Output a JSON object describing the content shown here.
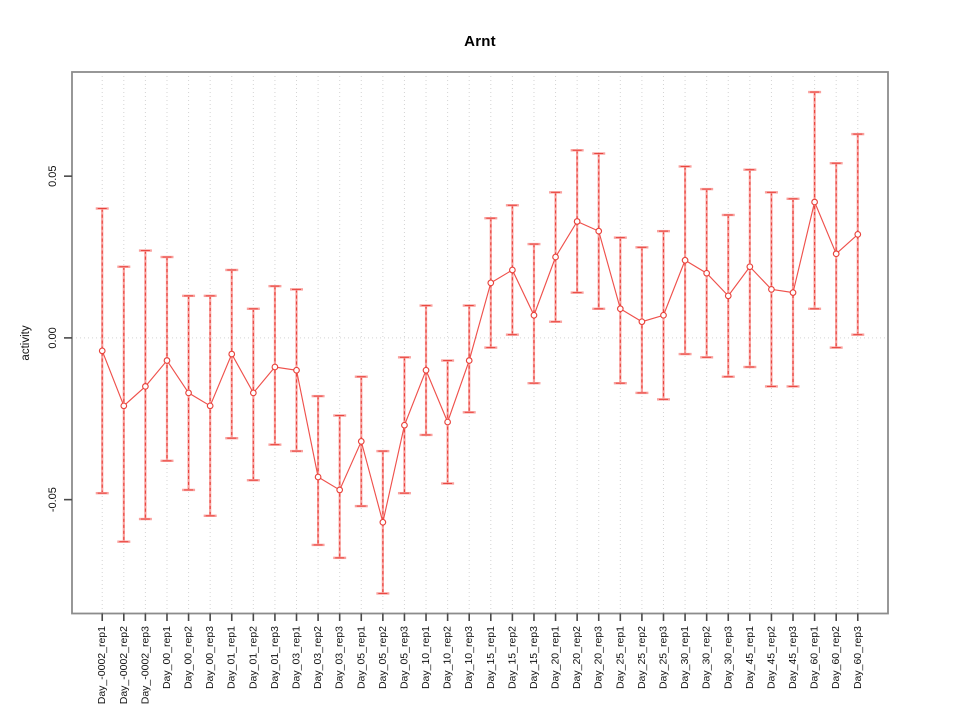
{
  "chart_data": {
    "type": "scatter",
    "title": "Arnt",
    "xlabel": "",
    "ylabel": "activity",
    "legend": "none",
    "grid": "vertical dotted gridline at every category; horizontal dotted line at y=0 only",
    "ylim": [
      -0.0852,
      0.0822
    ],
    "yticks": [
      -0.05,
      0,
      0.05
    ],
    "ytick_labels": [
      "-0.05",
      "0.00",
      "0.05"
    ],
    "marker": "open-circle",
    "error_bars": "vertical with caps, red dashed core over pale solid",
    "categories": [
      "Day_-0002_rep1",
      "Day_-0002_rep2",
      "Day_-0002_rep3",
      "Day_00_rep1",
      "Day_00_rep2",
      "Day_00_rep3",
      "Day_01_rep1",
      "Day_01_rep2",
      "Day_01_rep3",
      "Day_03_rep1",
      "Day_03_rep2",
      "Day_03_rep3",
      "Day_05_rep1",
      "Day_05_rep2",
      "Day_05_rep3",
      "Day_10_rep1",
      "Day_10_rep2",
      "Day_10_rep3",
      "Day_15_rep1",
      "Day_15_rep2",
      "Day_15_rep3",
      "Day_20_rep1",
      "Day_20_rep2",
      "Day_20_rep3",
      "Day_25_rep1",
      "Day_25_rep2",
      "Day_25_rep3",
      "Day_30_rep1",
      "Day_30_rep2",
      "Day_30_rep3",
      "Day_45_rep1",
      "Day_45_rep2",
      "Day_45_rep3",
      "Day_60_rep1",
      "Day_60_rep2",
      "Day_60_rep3"
    ],
    "points": [
      {
        "label": "Day_-0002_rep1",
        "value": -0.004,
        "lo": -0.048,
        "hi": 0.04
      },
      {
        "label": "Day_-0002_rep2",
        "value": -0.021,
        "lo": -0.063,
        "hi": 0.022
      },
      {
        "label": "Day_-0002_rep3",
        "value": -0.015,
        "lo": -0.056,
        "hi": 0.027
      },
      {
        "label": "Day_00_rep1",
        "value": -0.007,
        "lo": -0.038,
        "hi": 0.025
      },
      {
        "label": "Day_00_rep2",
        "value": -0.017,
        "lo": -0.047,
        "hi": 0.013
      },
      {
        "label": "Day_00_rep3",
        "value": -0.021,
        "lo": -0.055,
        "hi": 0.013
      },
      {
        "label": "Day_01_rep1",
        "value": -0.005,
        "lo": -0.031,
        "hi": 0.021
      },
      {
        "label": "Day_01_rep2",
        "value": -0.017,
        "lo": -0.044,
        "hi": 0.009
      },
      {
        "label": "Day_01_rep3",
        "value": -0.009,
        "lo": -0.033,
        "hi": 0.016
      },
      {
        "label": "Day_03_rep1",
        "value": -0.01,
        "lo": -0.035,
        "hi": 0.015
      },
      {
        "label": "Day_03_rep2",
        "value": -0.043,
        "lo": -0.064,
        "hi": -0.018
      },
      {
        "label": "Day_03_rep3",
        "value": -0.047,
        "lo": -0.068,
        "hi": -0.024
      },
      {
        "label": "Day_05_rep1",
        "value": -0.032,
        "lo": -0.052,
        "hi": -0.012
      },
      {
        "label": "Day_05_rep2",
        "value": -0.057,
        "lo": -0.079,
        "hi": -0.035
      },
      {
        "label": "Day_05_rep3",
        "value": -0.027,
        "lo": -0.048,
        "hi": -0.006
      },
      {
        "label": "Day_10_rep1",
        "value": -0.01,
        "lo": -0.03,
        "hi": 0.01
      },
      {
        "label": "Day_10_rep2",
        "value": -0.026,
        "lo": -0.045,
        "hi": -0.007
      },
      {
        "label": "Day_10_rep3",
        "value": -0.007,
        "lo": -0.023,
        "hi": 0.01
      },
      {
        "label": "Day_15_rep1",
        "value": 0.017,
        "lo": -0.003,
        "hi": 0.037
      },
      {
        "label": "Day_15_rep2",
        "value": 0.021,
        "lo": 0.001,
        "hi": 0.041
      },
      {
        "label": "Day_15_rep3",
        "value": 0.007,
        "lo": -0.014,
        "hi": 0.029
      },
      {
        "label": "Day_20_rep1",
        "value": 0.025,
        "lo": 0.005,
        "hi": 0.045
      },
      {
        "label": "Day_20_rep2",
        "value": 0.036,
        "lo": 0.014,
        "hi": 0.058
      },
      {
        "label": "Day_20_rep3",
        "value": 0.033,
        "lo": 0.009,
        "hi": 0.057
      },
      {
        "label": "Day_25_rep1",
        "value": 0.009,
        "lo": -0.014,
        "hi": 0.031
      },
      {
        "label": "Day_25_rep2",
        "value": 0.005,
        "lo": -0.017,
        "hi": 0.028
      },
      {
        "label": "Day_25_rep3",
        "value": 0.007,
        "lo": -0.019,
        "hi": 0.033
      },
      {
        "label": "Day_30_rep1",
        "value": 0.024,
        "lo": -0.005,
        "hi": 0.053
      },
      {
        "label": "Day_30_rep2",
        "value": 0.02,
        "lo": -0.006,
        "hi": 0.046
      },
      {
        "label": "Day_30_rep3",
        "value": 0.013,
        "lo": -0.012,
        "hi": 0.038
      },
      {
        "label": "Day_45_rep1",
        "value": 0.022,
        "lo": -0.009,
        "hi": 0.052
      },
      {
        "label": "Day_45_rep2",
        "value": 0.015,
        "lo": -0.015,
        "hi": 0.045
      },
      {
        "label": "Day_45_rep3",
        "value": 0.014,
        "lo": -0.015,
        "hi": 0.043
      },
      {
        "label": "Day_60_rep1",
        "value": 0.042,
        "lo": 0.009,
        "hi": 0.076
      },
      {
        "label": "Day_60_rep2",
        "value": 0.026,
        "lo": -0.003,
        "hi": 0.054
      },
      {
        "label": "Day_60_rep3",
        "value": 0.032,
        "lo": 0.001,
        "hi": 0.063
      }
    ],
    "colors": {
      "grid": "#d4d4d4",
      "frame": "#8c8c8c",
      "tick": "#4a4a4a",
      "label": "#111111",
      "bar_pale": "#f9a19e",
      "bar_red": "#e8433c",
      "series_line": "#ef514c",
      "point_stroke": "#e8433c",
      "point_fill": "#ffffff"
    }
  }
}
